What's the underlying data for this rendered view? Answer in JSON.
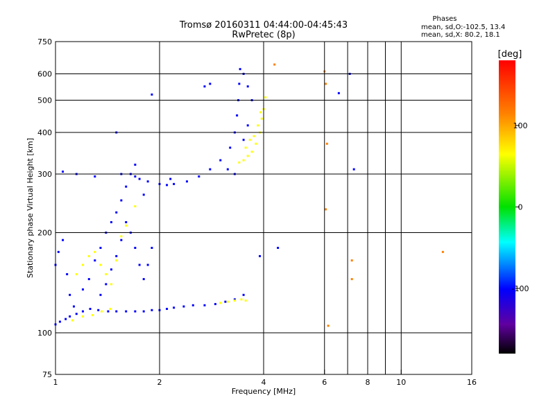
{
  "header": {
    "title": "Tromsø 20160311 04:44:00-04:45:43",
    "subtitle": "RwPretec (8p)"
  },
  "stats": {
    "heading": "Phases",
    "line1": "mean, sd,O:-102.5, 13.4",
    "line2": "mean, sd,X:  80.2, 18.1"
  },
  "colorbar": {
    "label": "[deg]",
    "range": [
      -180,
      180
    ],
    "ticks": [
      {
        "value": 100,
        "label": "100"
      },
      {
        "value": 0,
        "label": "0"
      },
      {
        "value": -100,
        "label": "-100"
      }
    ]
  },
  "chart_data": {
    "type": "scatter",
    "title": "Tromsø 20160311 04:44:00-04:45:43",
    "subtitle": "RwPretec (8p)",
    "xlabel": "Frequency [MHz]",
    "ylabel": "Stationary phase Virtual Height [km]",
    "xscale": "log",
    "yscale": "log",
    "xlim": [
      1,
      16
    ],
    "ylim": [
      75,
      750
    ],
    "x_ticks": [
      {
        "value": 1,
        "label": "1"
      },
      {
        "value": 2,
        "label": "2"
      },
      {
        "value": 4,
        "label": "4"
      },
      {
        "value": 6,
        "label": "6"
      },
      {
        "value": 8,
        "label": "8"
      },
      {
        "value": 10,
        "label": "10"
      },
      {
        "value": 16,
        "label": "16"
      }
    ],
    "y_ticks": [
      {
        "value": 75,
        "label": "75"
      },
      {
        "value": 100,
        "label": "100"
      },
      {
        "value": 200,
        "label": "200"
      },
      {
        "value": 300,
        "label": "300"
      },
      {
        "value": 400,
        "label": "400"
      },
      {
        "value": 500,
        "label": "500"
      },
      {
        "value": 600,
        "label": "600"
      },
      {
        "value": 750,
        "label": "750"
      }
    ],
    "x_gridlines": [
      2,
      4,
      6,
      7,
      8,
      9,
      10
    ],
    "y_gridlines": [
      100,
      200,
      300,
      400,
      500,
      600
    ],
    "color_encoding": "phase in degrees",
    "traces": [
      {
        "region": "E-layer band",
        "phase": -100,
        "points": [
          [
            1.0,
            106
          ],
          [
            1.03,
            108
          ],
          [
            1.07,
            110
          ],
          [
            1.1,
            112
          ],
          [
            1.15,
            114
          ],
          [
            1.2,
            116
          ],
          [
            1.26,
            118
          ],
          [
            1.33,
            117
          ],
          [
            1.42,
            116
          ],
          [
            1.5,
            116
          ],
          [
            1.6,
            116
          ],
          [
            1.7,
            116
          ],
          [
            1.8,
            116
          ],
          [
            1.9,
            117
          ],
          [
            2.0,
            117
          ],
          [
            2.1,
            118
          ],
          [
            2.2,
            119
          ],
          [
            2.35,
            120
          ],
          [
            2.5,
            121
          ],
          [
            2.7,
            121
          ],
          [
            2.9,
            122
          ],
          [
            3.1,
            124
          ],
          [
            3.3,
            126
          ],
          [
            3.5,
            130
          ]
        ]
      },
      {
        "region": "E-layer band",
        "phase": 100,
        "points": [
          [
            1.12,
            109
          ],
          [
            1.2,
            112
          ],
          [
            1.28,
            113
          ],
          [
            1.36,
            116
          ],
          [
            1.44,
            118
          ],
          [
            3.0,
            123
          ],
          [
            3.15,
            124
          ],
          [
            3.3,
            125
          ],
          [
            3.45,
            126
          ],
          [
            3.55,
            125
          ]
        ]
      },
      {
        "region": "F1 spread",
        "phase": -100,
        "points": [
          [
            1.0,
            160
          ],
          [
            1.02,
            175
          ],
          [
            1.05,
            190
          ],
          [
            1.08,
            150
          ],
          [
            1.1,
            130
          ],
          [
            1.13,
            120
          ],
          [
            1.2,
            135
          ],
          [
            1.25,
            145
          ],
          [
            1.3,
            165
          ],
          [
            1.35,
            180
          ],
          [
            1.4,
            200
          ],
          [
            1.45,
            215
          ],
          [
            1.5,
            230
          ],
          [
            1.55,
            250
          ],
          [
            1.6,
            275
          ],
          [
            1.65,
            300
          ],
          [
            1.7,
            320
          ],
          [
            1.75,
            290
          ],
          [
            1.8,
            260
          ],
          [
            1.6,
            215
          ],
          [
            1.55,
            190
          ],
          [
            1.5,
            170
          ],
          [
            1.45,
            155
          ],
          [
            1.4,
            140
          ],
          [
            1.35,
            130
          ],
          [
            1.65,
            200
          ],
          [
            1.7,
            180
          ],
          [
            1.75,
            160
          ],
          [
            1.8,
            145
          ],
          [
            1.85,
            160
          ],
          [
            1.9,
            180
          ]
        ]
      },
      {
        "region": "F1 spread",
        "phase": 100,
        "points": [
          [
            1.15,
            150
          ],
          [
            1.2,
            160
          ],
          [
            1.25,
            170
          ],
          [
            1.3,
            175
          ],
          [
            1.35,
            160
          ],
          [
            1.4,
            150
          ],
          [
            1.45,
            140
          ],
          [
            1.5,
            165
          ],
          [
            1.55,
            195
          ],
          [
            1.6,
            210
          ],
          [
            1.7,
            240
          ]
        ]
      },
      {
        "region": "F2 trace O",
        "phase": -100,
        "points": [
          [
            1.05,
            305
          ],
          [
            1.15,
            300
          ],
          [
            1.3,
            295
          ],
          [
            1.55,
            300
          ],
          [
            1.7,
            295
          ],
          [
            1.85,
            285
          ],
          [
            2.0,
            280
          ],
          [
            2.1,
            278
          ],
          [
            2.2,
            280
          ],
          [
            2.4,
            285
          ],
          [
            2.6,
            295
          ],
          [
            2.8,
            310
          ],
          [
            3.0,
            330
          ],
          [
            3.2,
            360
          ],
          [
            3.3,
            400
          ],
          [
            3.35,
            450
          ],
          [
            3.38,
            500
          ],
          [
            3.4,
            560
          ],
          [
            3.42,
            620
          ],
          [
            3.5,
            600
          ],
          [
            3.6,
            550
          ],
          [
            3.7,
            500
          ],
          [
            3.3,
            300
          ],
          [
            3.15,
            310
          ],
          [
            3.5,
            380
          ],
          [
            3.6,
            420
          ]
        ]
      },
      {
        "region": "F2 trace X",
        "phase": 100,
        "points": [
          [
            3.4,
            325
          ],
          [
            3.5,
            330
          ],
          [
            3.6,
            340
          ],
          [
            3.7,
            350
          ],
          [
            3.8,
            370
          ],
          [
            3.9,
            400
          ],
          [
            3.95,
            440
          ],
          [
            4.0,
            470
          ],
          [
            4.05,
            510
          ],
          [
            3.55,
            360
          ],
          [
            3.65,
            380
          ],
          [
            3.75,
            390
          ],
          [
            3.85,
            420
          ],
          [
            3.92,
            460
          ]
        ]
      },
      {
        "region": "Sparse",
        "phase": -100,
        "points": [
          [
            1.9,
            520
          ],
          [
            2.7,
            550
          ],
          [
            2.8,
            560
          ],
          [
            2.15,
            290
          ],
          [
            1.5,
            400
          ],
          [
            3.9,
            170
          ],
          [
            4.4,
            180
          ],
          [
            6.6,
            525
          ],
          [
            7.3,
            310
          ],
          [
            7.1,
            600
          ]
        ]
      },
      {
        "region": "Sparse",
        "phase": 150,
        "points": [
          [
            6.0,
            610
          ],
          [
            6.05,
            560
          ],
          [
            6.1,
            370
          ],
          [
            6.05,
            235
          ],
          [
            6.15,
            105
          ],
          [
            7.2,
            145
          ],
          [
            7.2,
            165
          ],
          [
            4.3,
            640
          ],
          [
            13.2,
            175
          ]
        ]
      }
    ]
  }
}
